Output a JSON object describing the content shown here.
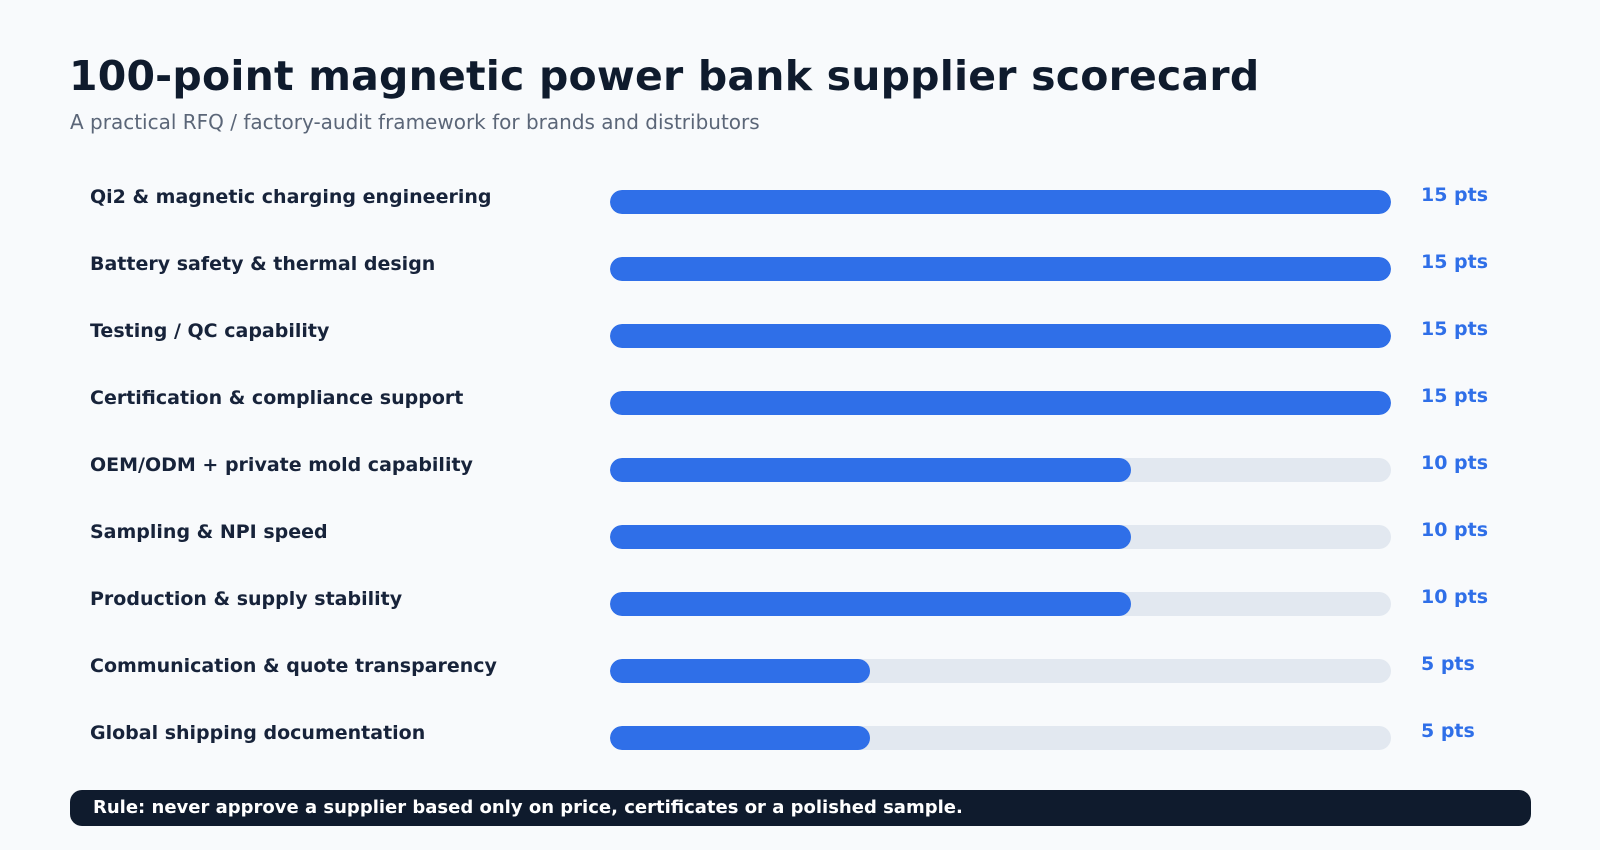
{
  "header": {
    "title": "100-point magnetic power bank supplier scorecard",
    "subtitle": "A practical RFQ / factory-audit framework for brands and distributors"
  },
  "chart_data": {
    "type": "bar",
    "orientation": "horizontal",
    "max_value": 15,
    "bar_color": "#2f6fe8",
    "track_color": "#e2e8f0",
    "categories": [
      "Qi2 & magnetic charging engineering",
      "Battery safety & thermal design",
      "Testing / QC capability",
      "Certification & compliance support",
      "OEM/ODM + private mold capability",
      "Sampling & NPI speed",
      "Production & supply stability",
      "Communication & quote transparency",
      "Global shipping documentation"
    ],
    "values": [
      15,
      15,
      15,
      15,
      10,
      10,
      10,
      5,
      5
    ],
    "value_labels": [
      "15 pts",
      "15 pts",
      "15 pts",
      "15 pts",
      "10 pts",
      "10 pts",
      "10 pts",
      "5 pts",
      "5 pts"
    ]
  },
  "footer": {
    "rule": "Rule: never approve a supplier based only on price, certificates or a polished sample."
  }
}
